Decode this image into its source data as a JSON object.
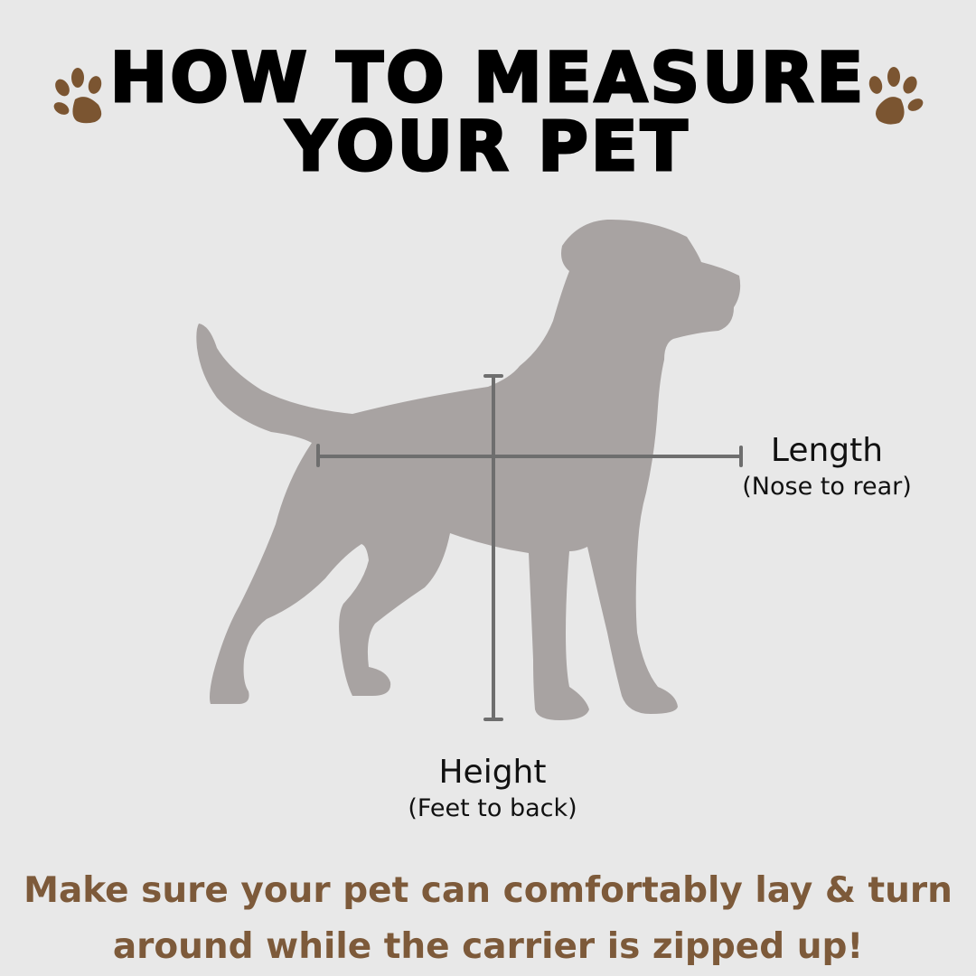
{
  "title": {
    "line1": "HOW TO MEASURE",
    "line2": "YOUR PET"
  },
  "icons": {
    "left": "paw-print-icon",
    "right": "paw-print-icon"
  },
  "measurements": {
    "length": {
      "label": "Length",
      "detail": "(Nose to rear)"
    },
    "height": {
      "label": "Height",
      "detail": "(Feet to back)"
    }
  },
  "note": {
    "line1": "Make sure your pet can comfortably lay & turn",
    "line2": "around while the carrier is zipped up!"
  },
  "colors": {
    "background": "#e8e8e8",
    "accent_brown": "#7d5a3a",
    "silhouette": "#a8a3a2",
    "measure_line": "#6e6e6e"
  }
}
